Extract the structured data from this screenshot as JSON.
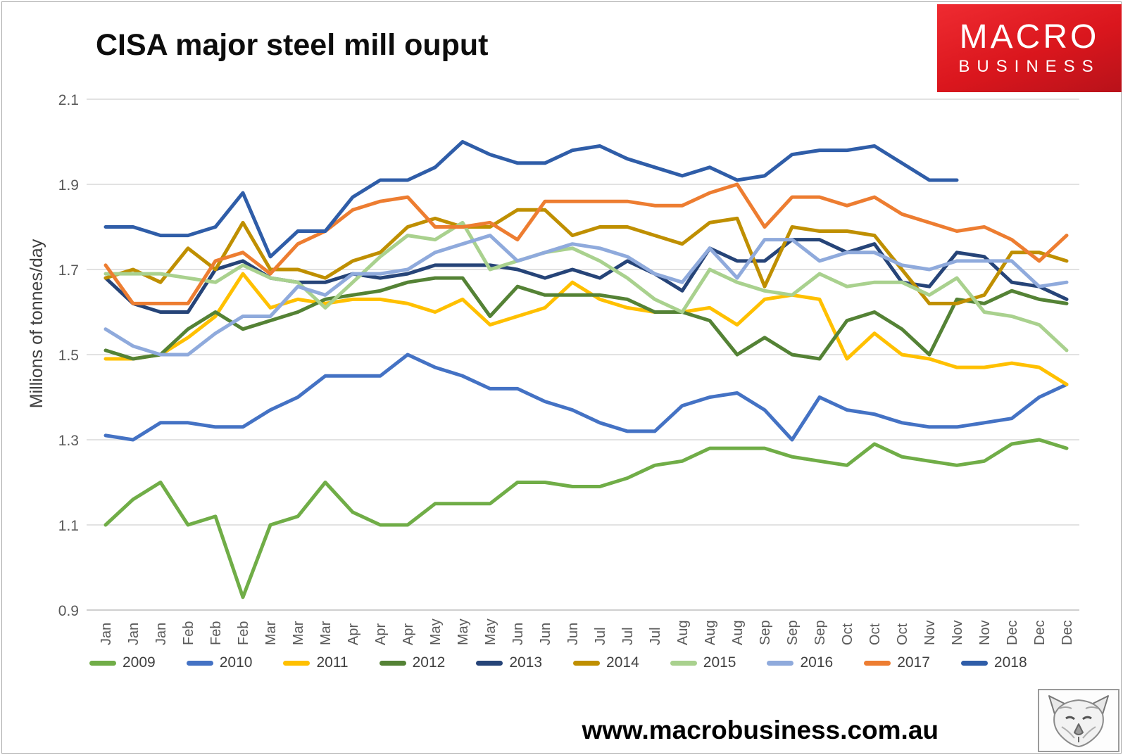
{
  "header": {
    "title": "CISA major steel mill ouput"
  },
  "logo": {
    "line1": "MACRO",
    "line2": "BUSINESS",
    "bg_color": "#d8151c",
    "text_color": "#ffffff"
  },
  "footer": {
    "url": "www.macrobusiness.com.au",
    "corner_icon": "wolf-sketch-icon"
  },
  "colors": {
    "gridline": "#d9d9d9",
    "baseline": "#bfbfbf",
    "tick_text": "#595959",
    "legend_text": "#404040"
  },
  "chart_data": {
    "type": "line",
    "title": "CISA major steel mill ouput",
    "xlabel": "",
    "ylabel": "Millions of tonnes/day",
    "ylim": [
      0.9,
      2.1
    ],
    "yticks": [
      2.1,
      1.9,
      1.7,
      1.5,
      1.3,
      1.1,
      0.9
    ],
    "grid": true,
    "legend_position": "bottom",
    "x_labels": [
      "Jan",
      "Jan",
      "Jan",
      "Feb",
      "Feb",
      "Feb",
      "Mar",
      "Mar",
      "Mar",
      "Apr",
      "Apr",
      "Apr",
      "May",
      "May",
      "May",
      "Jun",
      "Jun",
      "Jun",
      "Jul",
      "Jul",
      "Jul",
      "Aug",
      "Aug",
      "Aug",
      "Sep",
      "Sep",
      "Sep",
      "Oct",
      "Oct",
      "Oct",
      "Nov",
      "Nov",
      "Nov",
      "Dec",
      "Dec",
      "Dec"
    ],
    "series": [
      {
        "name": "2009",
        "color": "#70AD47",
        "values": [
          1.1,
          1.16,
          1.2,
          1.1,
          1.12,
          0.93,
          1.1,
          1.12,
          1.2,
          1.13,
          1.1,
          1.1,
          1.15,
          1.15,
          1.15,
          1.2,
          1.2,
          1.19,
          1.19,
          1.21,
          1.24,
          1.25,
          1.28,
          1.28,
          1.28,
          1.26,
          1.25,
          1.24,
          1.29,
          1.26,
          1.25,
          1.24,
          1.25,
          1.29,
          1.3,
          1.28
        ]
      },
      {
        "name": "2010",
        "color": "#4472C4",
        "values": [
          1.31,
          1.3,
          1.34,
          1.34,
          1.33,
          1.33,
          1.37,
          1.4,
          1.45,
          1.45,
          1.45,
          1.5,
          1.47,
          1.45,
          1.42,
          1.42,
          1.39,
          1.37,
          1.34,
          1.32,
          1.32,
          1.38,
          1.4,
          1.41,
          1.37,
          1.3,
          1.4,
          1.37,
          1.36,
          1.34,
          1.33,
          1.33,
          1.34,
          1.35,
          1.4,
          1.43
        ]
      },
      {
        "name": "2011",
        "color": "#FFC000",
        "values": [
          1.49,
          1.49,
          1.5,
          1.54,
          1.59,
          1.69,
          1.61,
          1.63,
          1.62,
          1.63,
          1.63,
          1.62,
          1.6,
          1.63,
          1.57,
          1.59,
          1.61,
          1.67,
          1.63,
          1.61,
          1.6,
          1.6,
          1.61,
          1.57,
          1.63,
          1.64,
          1.63,
          1.49,
          1.55,
          1.5,
          1.49,
          1.47,
          1.47,
          1.48,
          1.47,
          1.43
        ]
      },
      {
        "name": "2012",
        "color": "#548235",
        "values": [
          1.51,
          1.49,
          1.5,
          1.56,
          1.6,
          1.56,
          1.58,
          1.6,
          1.63,
          1.64,
          1.65,
          1.67,
          1.68,
          1.68,
          1.59,
          1.66,
          1.64,
          1.64,
          1.64,
          1.63,
          1.6,
          1.6,
          1.58,
          1.5,
          1.54,
          1.5,
          1.49,
          1.58,
          1.6,
          1.56,
          1.5,
          1.63,
          1.62,
          1.65,
          1.63,
          1.62
        ]
      },
      {
        "name": "2013",
        "color": "#264478",
        "values": [
          1.68,
          1.62,
          1.6,
          1.6,
          1.7,
          1.72,
          1.68,
          1.67,
          1.67,
          1.69,
          1.68,
          1.69,
          1.71,
          1.71,
          1.71,
          1.7,
          1.68,
          1.7,
          1.68,
          1.72,
          1.69,
          1.65,
          1.75,
          1.72,
          1.72,
          1.77,
          1.77,
          1.74,
          1.76,
          1.67,
          1.66,
          1.74,
          1.73,
          1.67,
          1.66,
          1.63
        ]
      },
      {
        "name": "2014",
        "color": "#BF8F00",
        "values": [
          1.68,
          1.7,
          1.67,
          1.75,
          1.7,
          1.81,
          1.7,
          1.7,
          1.68,
          1.72,
          1.74,
          1.8,
          1.82,
          1.8,
          1.8,
          1.84,
          1.84,
          1.78,
          1.8,
          1.8,
          1.78,
          1.76,
          1.81,
          1.82,
          1.66,
          1.8,
          1.79,
          1.79,
          1.78,
          1.7,
          1.62,
          1.62,
          1.64,
          1.74,
          1.74,
          1.72
        ]
      },
      {
        "name": "2015",
        "color": "#A9D18E",
        "values": [
          1.69,
          1.69,
          1.69,
          1.68,
          1.67,
          1.71,
          1.68,
          1.67,
          1.61,
          1.67,
          1.73,
          1.78,
          1.77,
          1.81,
          1.7,
          1.72,
          1.74,
          1.75,
          1.72,
          1.68,
          1.63,
          1.6,
          1.7,
          1.67,
          1.65,
          1.64,
          1.69,
          1.66,
          1.67,
          1.67,
          1.64,
          1.68,
          1.6,
          1.59,
          1.57,
          1.51
        ]
      },
      {
        "name": "2016",
        "color": "#8FAADC",
        "values": [
          1.56,
          1.52,
          1.5,
          1.5,
          1.55,
          1.59,
          1.59,
          1.66,
          1.64,
          1.69,
          1.69,
          1.7,
          1.74,
          1.76,
          1.78,
          1.72,
          1.74,
          1.76,
          1.75,
          1.73,
          1.69,
          1.67,
          1.75,
          1.68,
          1.77,
          1.77,
          1.72,
          1.74,
          1.74,
          1.71,
          1.7,
          1.72,
          1.72,
          1.72,
          1.66,
          1.67
        ]
      },
      {
        "name": "2017",
        "color": "#ED7D31",
        "values": [
          1.71,
          1.62,
          1.62,
          1.62,
          1.72,
          1.74,
          1.69,
          1.76,
          1.79,
          1.84,
          1.86,
          1.87,
          1.8,
          1.8,
          1.81,
          1.77,
          1.86,
          1.86,
          1.86,
          1.86,
          1.85,
          1.85,
          1.88,
          1.9,
          1.8,
          1.87,
          1.87,
          1.85,
          1.87,
          1.83,
          1.81,
          1.79,
          1.8,
          1.77,
          1.72,
          1.78
        ]
      },
      {
        "name": "2018",
        "color": "#2F5DA8",
        "values": [
          1.8,
          1.8,
          1.78,
          1.78,
          1.8,
          1.88,
          1.73,
          1.79,
          1.79,
          1.87,
          1.91,
          1.91,
          1.94,
          2.0,
          1.97,
          1.95,
          1.95,
          1.98,
          1.99,
          1.96,
          1.94,
          1.92,
          1.94,
          1.91,
          1.92,
          1.97,
          1.98,
          1.98,
          1.99,
          1.95,
          1.91,
          1.91
        ]
      }
    ]
  }
}
